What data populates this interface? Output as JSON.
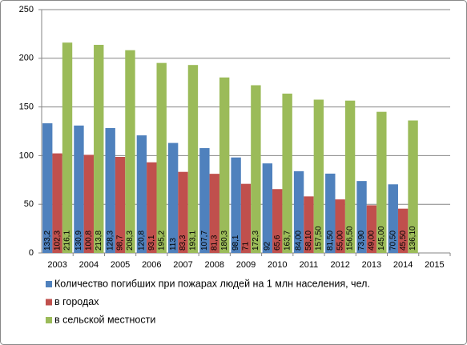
{
  "chart_data": {
    "type": "bar",
    "categories": [
      "2003",
      "2004",
      "2005",
      "2006",
      "2007",
      "2008",
      "2009",
      "2010",
      "2011",
      "2012",
      "2013",
      "2014",
      "2015"
    ],
    "series": [
      {
        "name": "Количество погибших при пожарах людей на 1 млн населения, чел.",
        "color": "#4f81bd",
        "values": [
          133.2,
          130.9,
          128.3,
          120.8,
          113,
          107.7,
          98.1,
          92,
          84.0,
          81.5,
          73.9,
          70.5,
          null
        ],
        "value_labels": [
          "133,2",
          "130,9",
          "128,3",
          "120,8",
          "113",
          "107,7",
          "98,1",
          "92",
          "84,00",
          "81,50",
          "73,90",
          "70,50",
          null
        ]
      },
      {
        "name": "в городах",
        "color": "#c0504d",
        "values": [
          102.3,
          100.8,
          98.7,
          93.1,
          83.3,
          81.3,
          71,
          65.6,
          58.1,
          55.0,
          49.0,
          45.5,
          null
        ],
        "value_labels": [
          "102,3",
          "100,8",
          "98,7",
          "93,1",
          "83,3",
          "81,3",
          "71",
          "65,6",
          "58,10",
          "55,00",
          "49,00",
          "45,50",
          null
        ]
      },
      {
        "name": "в сельской местности",
        "color": "#9bbb59",
        "values": [
          216.1,
          213.8,
          208.3,
          195.2,
          193.1,
          180.3,
          172.3,
          163.7,
          157.5,
          156.5,
          145.0,
          136.1,
          null
        ],
        "value_labels": [
          "216,1",
          "213,8",
          "208,3",
          "195,2",
          "193,1",
          "180,3",
          "172,3",
          "163,7",
          "157,50",
          "156,50",
          "145,00",
          "136,10",
          null
        ]
      }
    ],
    "ylim": [
      0,
      250
    ],
    "yticks": [
      0,
      50,
      100,
      150,
      200,
      250
    ],
    "grid": true,
    "legend": "bottom"
  }
}
